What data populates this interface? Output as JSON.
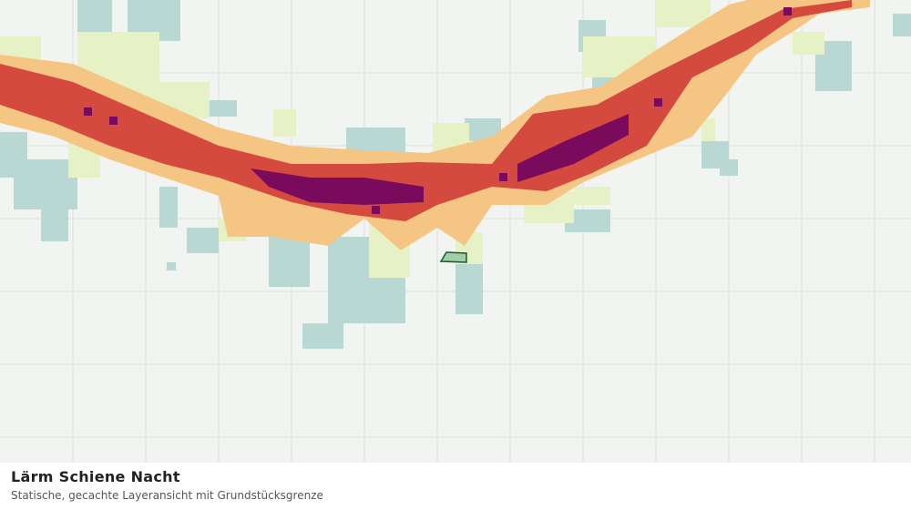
{
  "legend_panel": {
    "title": "Lärm Schiene Nacht",
    "subtitle": "Statische, gecachte Layeransicht mit Grundstücksgrenze"
  }
}
